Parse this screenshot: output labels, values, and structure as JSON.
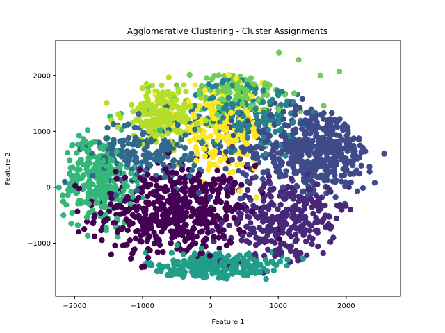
{
  "chart_data": {
    "type": "scatter",
    "title": "Agglomerative Clustering - Cluster Assignments",
    "xlabel": "Feature 1",
    "ylabel": "Feature 2",
    "xlim": [
      -2280,
      2800
    ],
    "ylim": [
      -1950,
      2630
    ],
    "xticks": [
      -2000,
      -1000,
      0,
      1000,
      2000
    ],
    "yticks": [
      -1000,
      0,
      1000,
      2000
    ],
    "xtick_labels": [
      "−2000",
      "−1000",
      "0",
      "1000",
      "2000"
    ],
    "ytick_labels": [
      "−1000",
      "0",
      "1000",
      "2000"
    ],
    "grid": false,
    "legend": false,
    "colormap": "viridis",
    "clusters": [
      {
        "cluster": 0,
        "color": "#440154",
        "center": [
          -550,
          -450
        ],
        "spread": [
          560,
          420
        ],
        "count": 520
      },
      {
        "cluster": 1,
        "color": "#482878",
        "center": [
          1100,
          -600
        ],
        "spread": [
          460,
          380
        ],
        "count": 320
      },
      {
        "cluster": 2,
        "color": "#3e4a89",
        "center": [
          1500,
          700
        ],
        "spread": [
          520,
          380
        ],
        "count": 560
      },
      {
        "cluster": 3,
        "color": "#31688e",
        "center": [
          -900,
          650
        ],
        "spread": [
          420,
          300
        ],
        "count": 220
      },
      {
        "cluster": 4,
        "color": "#26828e",
        "center": [
          550,
          1350
        ],
        "spread": [
          380,
          320
        ],
        "count": 180
      },
      {
        "cluster": 5,
        "color": "#1f9e89",
        "center": [
          100,
          -1450
        ],
        "spread": [
          520,
          150
        ],
        "count": 320
      },
      {
        "cluster": 6,
        "color": "#35b779",
        "center": [
          -1650,
          150
        ],
        "spread": [
          250,
          400
        ],
        "count": 260
      },
      {
        "cluster": 7,
        "color": "#6ece58",
        "center": [
          500,
          1750
        ],
        "spread": [
          460,
          220
        ],
        "count": 150
      },
      {
        "cluster": 8,
        "color": "#b5de2b",
        "center": [
          -700,
          1300
        ],
        "spread": [
          300,
          260
        ],
        "count": 200
      },
      {
        "cluster": 9,
        "color": "#fde725",
        "center": [
          150,
          1050
        ],
        "spread": [
          320,
          360
        ],
        "count": 220
      }
    ],
    "outlier_points": [
      {
        "x": 1010,
        "y": 2410,
        "cluster": 7
      },
      {
        "x": 1300,
        "y": 2280,
        "cluster": 7
      },
      {
        "x": 1900,
        "y": 2070,
        "cluster": 7
      },
      {
        "x": 1620,
        "y": 2000,
        "cluster": 7
      },
      {
        "x": 2560,
        "y": 600,
        "cluster": 2
      },
      {
        "x": 2420,
        "y": 80,
        "cluster": 2
      },
      {
        "x": -2050,
        "y": -650,
        "cluster": 6
      },
      {
        "x": -2060,
        "y": 70,
        "cluster": 6
      },
      {
        "x": 820,
        "y": -1640,
        "cluster": 5
      },
      {
        "x": 1660,
        "y": -1180,
        "cluster": 1
      }
    ]
  }
}
